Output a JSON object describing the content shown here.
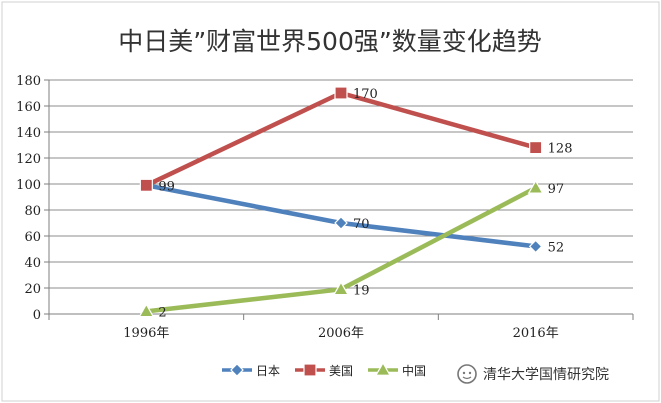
{
  "chart_data": {
    "type": "line",
    "title": "中日美”财富世界500强”数量变化趋势",
    "categories": [
      "1996年",
      "2006年",
      "2016年"
    ],
    "ylim": [
      0,
      180
    ],
    "yticks": [
      0,
      20,
      40,
      60,
      80,
      100,
      120,
      140,
      160,
      180
    ],
    "grid": true,
    "legend_position": "bottom",
    "series": [
      {
        "name": "日本",
        "values": [
          99,
          70,
          52
        ],
        "labels": [
          "99",
          "70",
          "52"
        ],
        "color": "#4f81bd",
        "marker": "diamond"
      },
      {
        "name": "美国",
        "values": [
          99,
          170,
          128
        ],
        "labels": [
          "",
          "170",
          "128"
        ],
        "color": "#c0504d",
        "marker": "square"
      },
      {
        "name": "中国",
        "values": [
          2,
          19,
          97
        ],
        "labels": [
          "2",
          "19",
          "97"
        ],
        "color": "#9bbb59",
        "marker": "triangle"
      }
    ]
  },
  "watermark": {
    "text": "清华大学国情研究院",
    "icon": "wechat-icon"
  }
}
